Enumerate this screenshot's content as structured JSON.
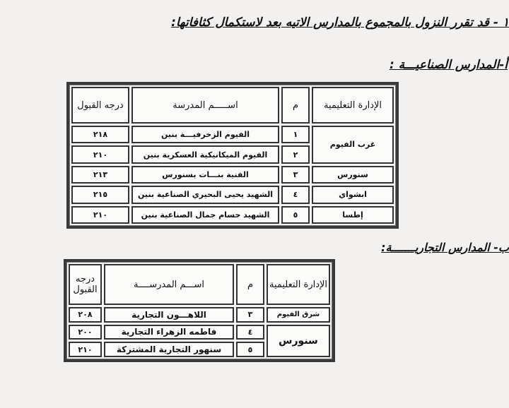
{
  "main_heading": "١ - قد تقرر النزول بالمجموع بالمدارس الاتيه بعد لاستكمال كثافاتها:",
  "sections": [
    {
      "title": "أ-المدارس الصناعيـــة :",
      "headers": {
        "admin": "الإدارة التعليمية",
        "num": "م",
        "name": "اســـــم المدرسة",
        "grade": "درجه القبول"
      },
      "rows": [
        {
          "admin": "غرب الفيوم",
          "num": "١",
          "name": "الفيوم الزخرفيـــة بنين",
          "grade": "٢١٨"
        },
        {
          "admin": "",
          "num": "٢",
          "name": "الفيوم الميكانيكية العسكرية بنين",
          "grade": "٢١٠"
        },
        {
          "admin": "سنورس",
          "num": "٣",
          "name": "الفنية بنـــات بسنورس",
          "grade": "٢١٣"
        },
        {
          "admin": "ابشواي",
          "num": "٤",
          "name": "الشهيد يحيى البحيري الصناعية بنين",
          "grade": "٢١٥"
        },
        {
          "admin": "إطسا",
          "num": "٥",
          "name": "الشهيد حسام جمال الصناعية بنين",
          "grade": "٢١٠"
        }
      ]
    },
    {
      "title": "ب- المدارس التجاريـــــــة:",
      "headers": {
        "admin": "الإدارة التعليمية",
        "num": "م",
        "name": "اســـم المدرســــة",
        "grade": "درجه القبول"
      },
      "rows": [
        {
          "admin": "شرق الفيوم",
          "num": "٣",
          "name": "اللاهـــون التجارية",
          "grade": "٢٠٨"
        },
        {
          "admin": "سنورس",
          "num": "٤",
          "name": "فاطمه الزهراء التجارية",
          "grade": "٢٠٠"
        },
        {
          "admin": "",
          "num": "٥",
          "name": "سنهور التجارية المشتركة",
          "grade": "٢١٠"
        }
      ]
    }
  ]
}
